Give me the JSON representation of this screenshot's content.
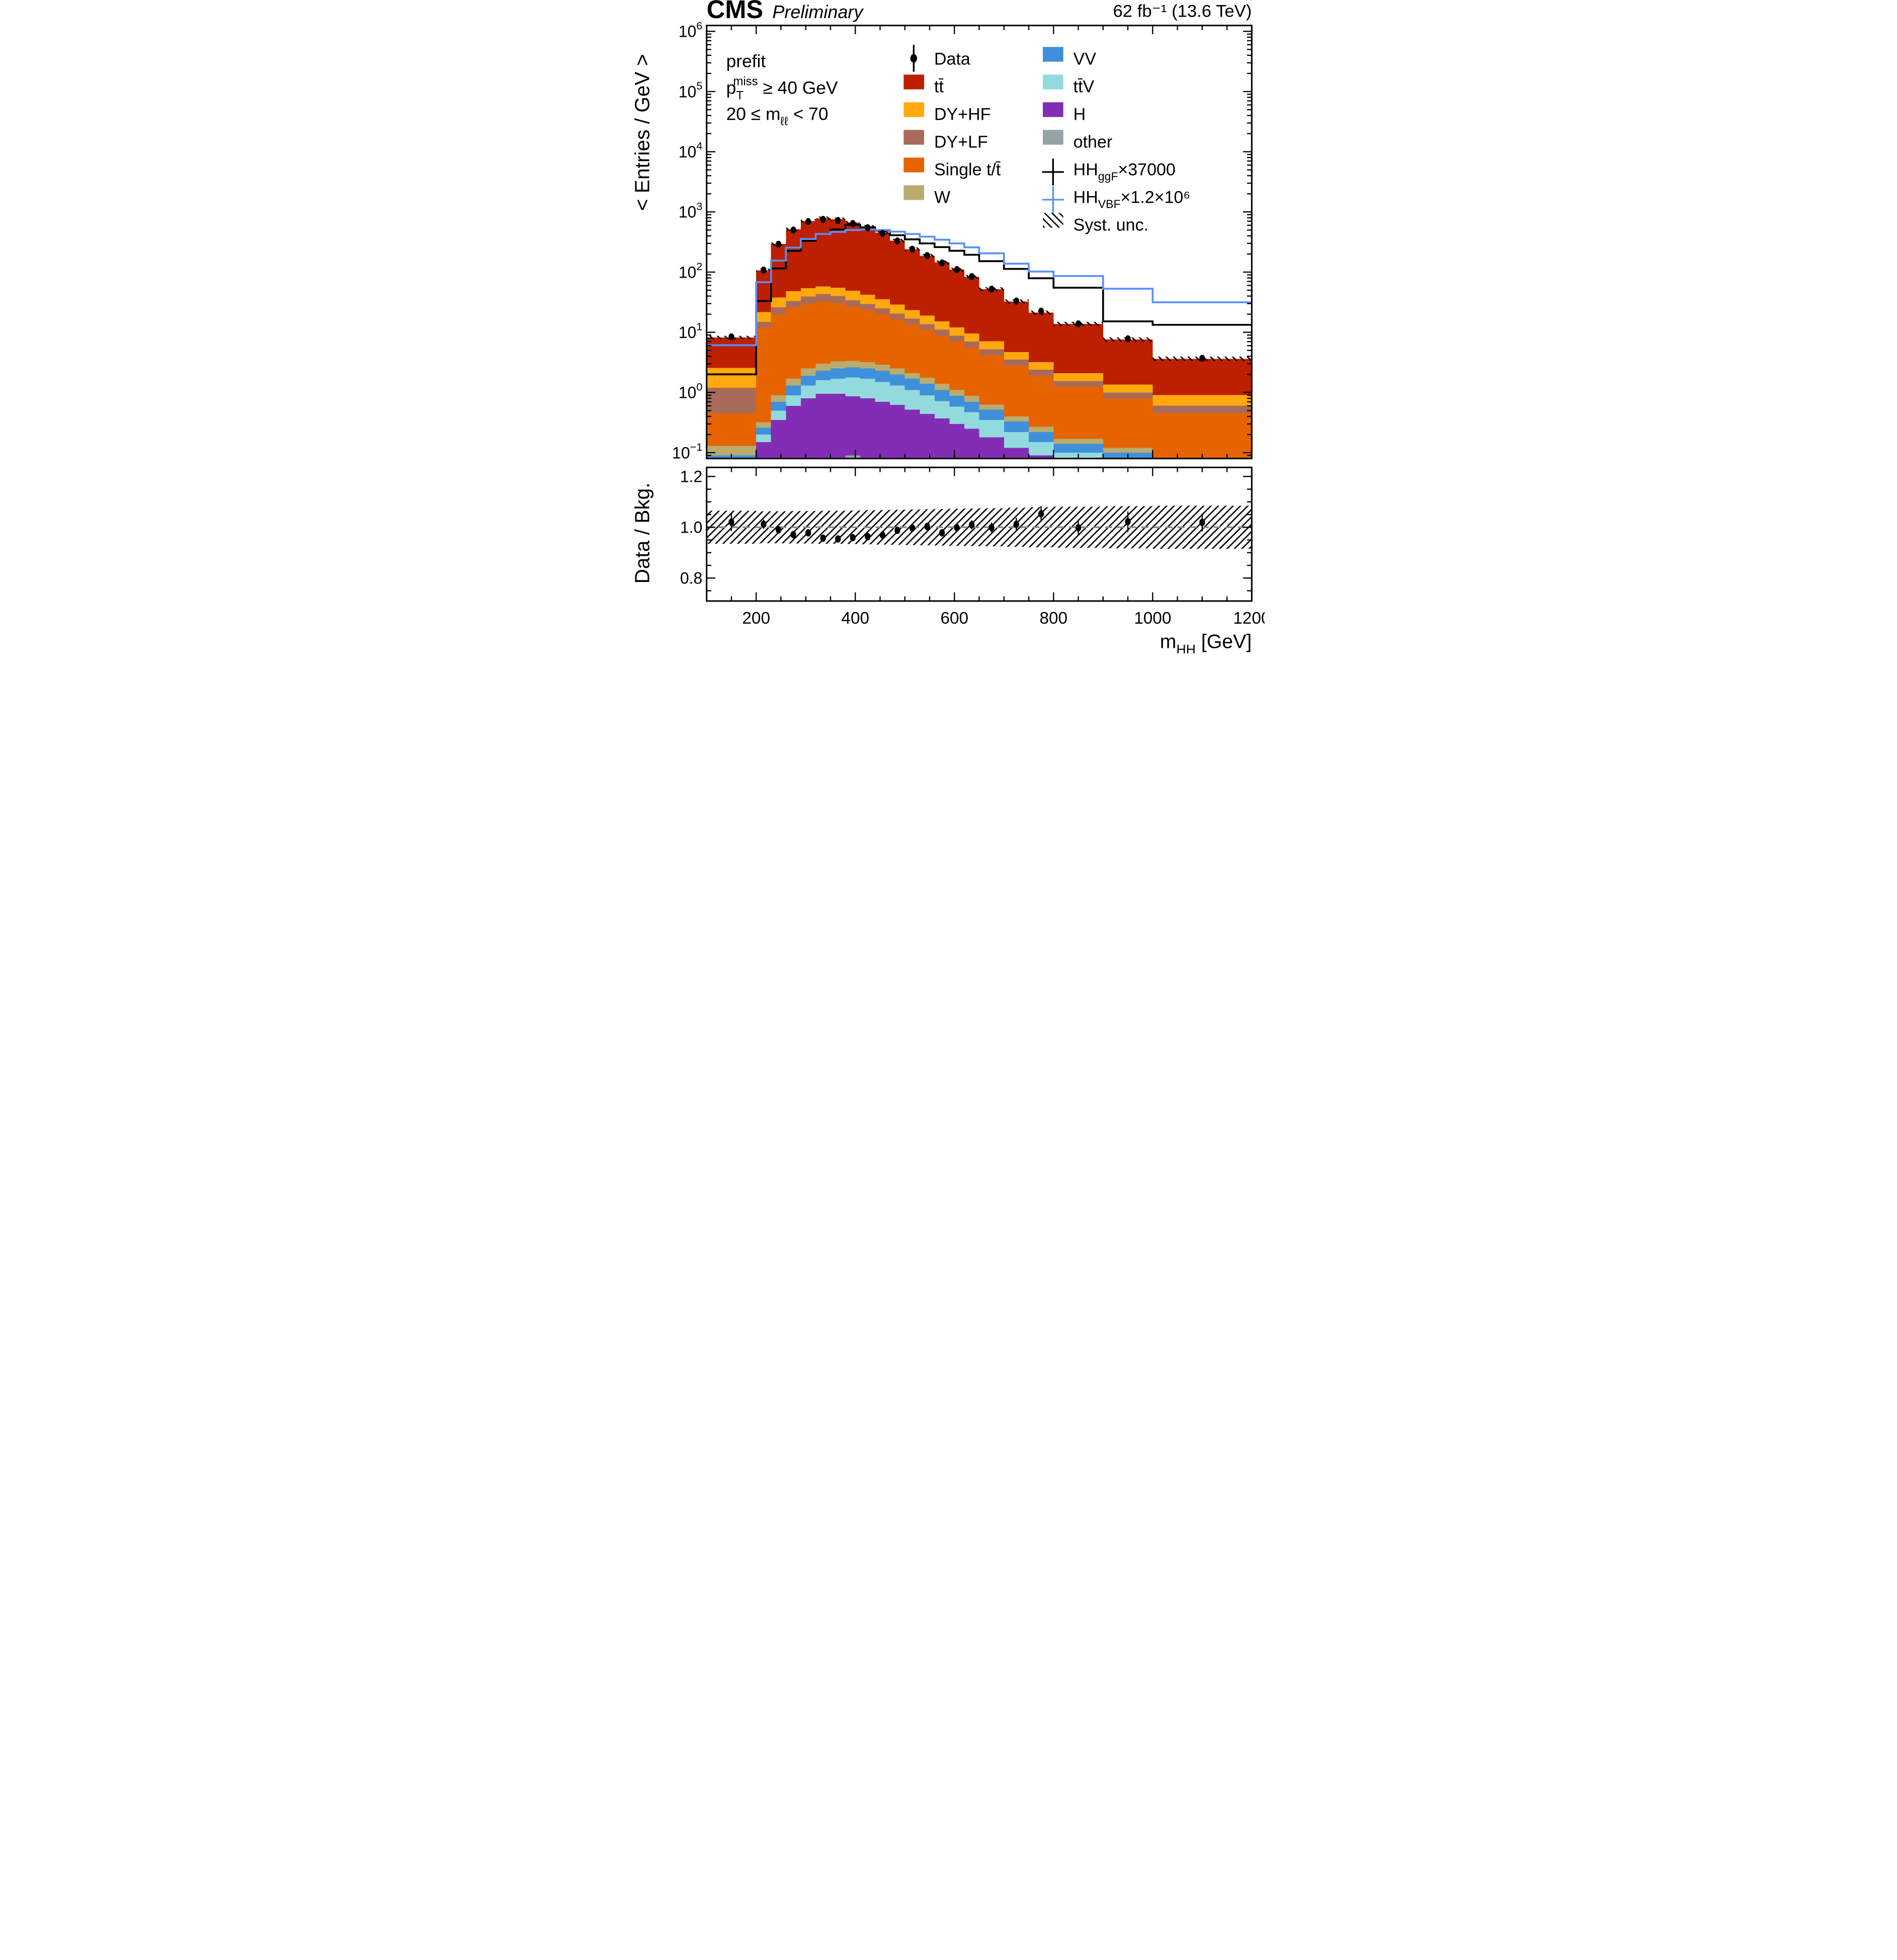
{
  "header": {
    "experiment": "CMS",
    "label": "Preliminary",
    "lumi": "62 fb⁻¹ (13.6 TeV)"
  },
  "info": {
    "fit_label": "prefit",
    "ptmiss_segments": [
      {
        "t": "p"
      },
      {
        "t": "T",
        "sub": true
      },
      {
        "t": "miss",
        "sup": true,
        "dx": -62
      },
      {
        "t": " ≥ 40 GeV"
      }
    ],
    "mll_segments": [
      {
        "t": "20 ≤ m"
      },
      {
        "t": "ℓℓ",
        "sub": true
      },
      {
        "t": " < 70"
      }
    ]
  },
  "axes": {
    "y_main_title": "< Entries / GeV >",
    "y_ratio_title": "Data / Bkg.",
    "x_title_segments": [
      {
        "t": "m"
      },
      {
        "t": "HH",
        "sub": true
      },
      {
        "t": " [GeV]"
      }
    ],
    "x_tick_labels": [
      "200",
      "400",
      "600",
      "800",
      "1000",
      "1200"
    ],
    "x_tick_values": [
      200,
      400,
      600,
      800,
      1000,
      1200
    ],
    "y_decades": [
      6,
      5,
      4,
      3,
      2,
      1,
      0,
      -1
    ],
    "ratio_tick_labels": [
      "1.2",
      "1.0",
      "0.8"
    ],
    "ratio_tick_values": [
      1.2,
      1.0,
      0.8
    ]
  },
  "legend": {
    "data_label": "Data",
    "syst_label": "Syst. unc.",
    "hh_ggf_segments": [
      {
        "t": "HH"
      },
      {
        "t": "ggF",
        "sub": true
      },
      {
        "t": "×37000"
      }
    ],
    "hh_vbf_segments": [
      {
        "t": "HH"
      },
      {
        "t": "VBF",
        "sub": true
      },
      {
        "t": "×1.2×10⁶"
      }
    ]
  },
  "chart_data": {
    "type": "bar",
    "subtype": "stacked-log-histogram-with-ratio",
    "x_label": "m_HH [GeV]",
    "y_label": "< Entries / GeV >",
    "x_range": [
      100,
      1200
    ],
    "y_range_main": [
      0.08,
      1250000
    ],
    "y_range_ratio": [
      0.71,
      1.236
    ],
    "bin_edges": [
      100,
      200,
      230,
      260,
      290,
      320,
      350,
      380,
      410,
      440,
      470,
      500,
      530,
      560,
      590,
      620,
      650,
      700,
      750,
      800,
      900,
      1000,
      1200
    ],
    "bin_centers": [
      150,
      215,
      245,
      275,
      305,
      335,
      365,
      395,
      425,
      455,
      485,
      515,
      545,
      575,
      605,
      635,
      675,
      725,
      775,
      850,
      950,
      1100
    ],
    "series": [
      {
        "name": "other",
        "label": "other",
        "color": "#94a4a2",
        "values": [
          0.03,
          0.03,
          0.05,
          0.06,
          0.07,
          0.08,
          0.08,
          0.09,
          0.08,
          0.07,
          0.06,
          0.06,
          0.05,
          0.05,
          0.04,
          0.04,
          0.03,
          0.03,
          0.02,
          0.02,
          0.01,
          0.01
        ]
      },
      {
        "name": "H",
        "label": "H",
        "color": "#832db6",
        "values": [
          0.02,
          0.12,
          0.3,
          0.54,
          0.73,
          0.87,
          0.87,
          0.77,
          0.72,
          0.63,
          0.56,
          0.46,
          0.39,
          0.32,
          0.26,
          0.21,
          0.15,
          0.09,
          0.07,
          0.04,
          0.03,
          0.01
        ]
      },
      {
        "name": "ttV",
        "label": "tt̄V",
        "color": "#92dadd",
        "values": [
          0.02,
          0.05,
          0.15,
          0.3,
          0.5,
          0.65,
          0.75,
          0.92,
          0.9,
          0.8,
          0.68,
          0.58,
          0.46,
          0.35,
          0.28,
          0.22,
          0.17,
          0.1,
          0.06,
          0.04,
          0.03,
          0.02
        ]
      },
      {
        "name": "VV",
        "label": "VV",
        "color": "#3f90da",
        "values": [
          0.02,
          0.06,
          0.2,
          0.4,
          0.6,
          0.7,
          0.8,
          0.82,
          0.8,
          0.8,
          0.7,
          0.6,
          0.5,
          0.38,
          0.3,
          0.23,
          0.17,
          0.11,
          0.07,
          0.04,
          0.03,
          0.02
        ]
      },
      {
        "name": "W",
        "label": "W",
        "color": "#b9ac70",
        "values": [
          0.04,
          0.06,
          0.2,
          0.4,
          0.6,
          0.7,
          0.8,
          0.76,
          0.7,
          0.6,
          0.5,
          0.4,
          0.35,
          0.3,
          0.22,
          0.18,
          0.11,
          0.07,
          0.05,
          0.03,
          0.02,
          0.015
        ]
      },
      {
        "name": "singletop",
        "label": "Single t/t̄",
        "color": "#e76300",
        "values": [
          0.32,
          11.68,
          19.1,
          24.3,
          27.5,
          29.6,
          27.2,
          23.6,
          20.3,
          17.1,
          14.0,
          11.4,
          9.25,
          7.4,
          5.9,
          4.72,
          3.57,
          2.4,
          1.63,
          1.08,
          0.68,
          0.38
        ]
      },
      {
        "name": "DYLF",
        "label": "DY+LF",
        "color": "#a96b59",
        "values": [
          0.75,
          2.9,
          6.0,
          7.0,
          9.5,
          10.9,
          9.5,
          7.0,
          6.0,
          5.0,
          4.0,
          3.3,
          2.7,
          2.2,
          1.8,
          1.4,
          1.0,
          0.7,
          0.5,
          0.3,
          0.2,
          0.15
        ]
      },
      {
        "name": "DYHF",
        "label": "DY+HF",
        "color": "#ffa90e",
        "values": [
          1.35,
          6.7,
          12.0,
          15.0,
          14.5,
          14.5,
          15.0,
          15.0,
          12.5,
          10.5,
          8.5,
          6.7,
          5.3,
          4.2,
          3.3,
          2.6,
          1.9,
          1.2,
          0.8,
          0.55,
          0.35,
          0.3
        ]
      },
      {
        "name": "tt",
        "label": "tt̄",
        "color": "#bd1f01",
        "values": [
          5.65,
          85.4,
          255,
          467,
          652,
          728,
          700,
          618,
          524,
          418,
          305,
          217,
          168,
          130,
          98,
          73.4,
          44.9,
          27.9,
          18.1,
          11.7,
          6.25,
          2.73
        ]
      }
    ],
    "signals": [
      {
        "name": "HH_ggF_x37000",
        "color": "#000000",
        "values": [
          2.0,
          33,
          115,
          225,
          330,
          430,
          510,
          610,
          555,
          490,
          410,
          350,
          300,
          260,
          226,
          194,
          152,
          113,
          79,
          55,
          15.2,
          13.3
        ]
      },
      {
        "name": "HH_VBF_x1.2e6",
        "color": "#5790fc",
        "values": [
          6.1,
          68,
          155,
          255,
          355,
          430,
          465,
          500,
          510,
          500,
          470,
          430,
          388,
          345,
          300,
          258,
          205,
          138,
          102,
          86,
          53,
          31.5
        ]
      }
    ],
    "data_points": {
      "values": [
        8.4,
        108,
        290,
        500,
        690,
        750,
        720,
        640,
        545,
        440,
        330,
        240,
        188,
        142,
        110,
        84,
        52,
        33,
        22.4,
        13.8,
        7.8,
        3.7
      ],
      "rel_err": [
        0.035,
        0.018,
        0.012,
        0.01,
        0.009,
        0.008,
        0.008,
        0.008,
        0.009,
        0.009,
        0.01,
        0.011,
        0.013,
        0.014,
        0.016,
        0.018,
        0.02,
        0.025,
        0.03,
        0.03,
        0.04,
        0.035
      ]
    },
    "ratio": {
      "values": [
        1.02,
        1.012,
        0.99,
        0.971,
        0.978,
        0.957,
        0.954,
        0.959,
        0.963,
        0.969,
        0.988,
        0.997,
        1.003,
        0.978,
        0.998,
        1.01,
        0.999,
        1.012,
        1.053,
        0.998,
        1.022,
        1.019
      ],
      "err": [
        0.035,
        0.018,
        0.012,
        0.01,
        0.009,
        0.008,
        0.008,
        0.008,
        0.009,
        0.009,
        0.01,
        0.011,
        0.013,
        0.014,
        0.016,
        0.018,
        0.02,
        0.025,
        0.03,
        0.03,
        0.04,
        0.035
      ],
      "band_frac": [
        0.065,
        0.063,
        0.063,
        0.064,
        0.064,
        0.065,
        0.065,
        0.066,
        0.067,
        0.068,
        0.069,
        0.07,
        0.071,
        0.072,
        0.073,
        0.074,
        0.075,
        0.077,
        0.079,
        0.081,
        0.083,
        0.085
      ],
      "reference_line": 1.0
    },
    "legend_position": "top-inside",
    "grid": false
  }
}
